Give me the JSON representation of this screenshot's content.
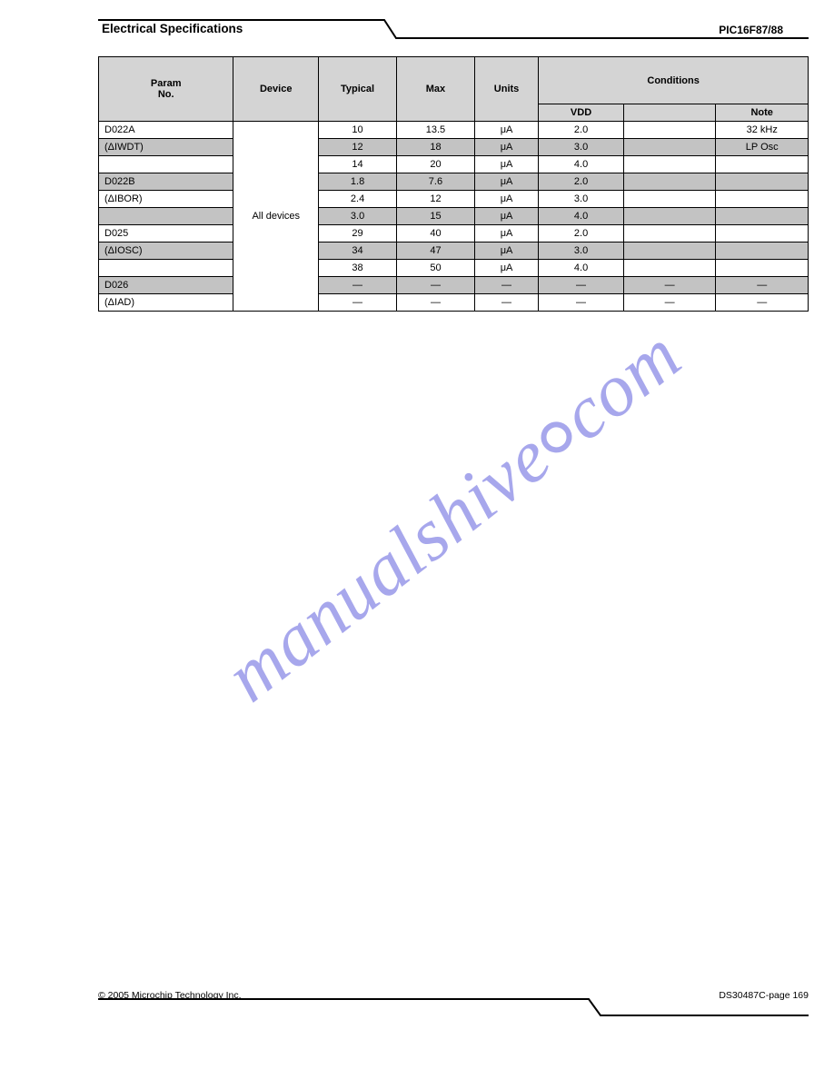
{
  "header": {
    "title": "Electrical Specifications",
    "tab": "PIC16F87/88"
  },
  "table": {
    "header_row1": [
      "Param\nNo.",
      "Device",
      "Typical",
      "Max",
      "Units",
      "",
      "",
      ""
    ],
    "header_conditions": "Conditions",
    "header_row2": [
      "",
      "",
      "",
      "",
      "",
      "VDD",
      "",
      "Note"
    ],
    "rows": [
      {
        "shaded": false,
        "cells": [
          "D022A",
          "",
          "10",
          "13.5",
          "μA",
          "2.0",
          "",
          "32 kHz"
        ]
      },
      {
        "shaded": true,
        "cells": [
          "(ΔIWDT)",
          "",
          "12",
          "18",
          "μA",
          "3.0",
          "",
          "LP Osc"
        ]
      },
      {
        "shaded": false,
        "cells": [
          "",
          "",
          "14",
          "20",
          "μA",
          "4.0",
          "",
          ""
        ]
      },
      {
        "shaded": true,
        "cells": [
          "D022B",
          "",
          "1.8",
          "7.6",
          "μA",
          "2.0",
          "",
          ""
        ]
      },
      {
        "shaded": false,
        "cells": [
          "(ΔIBOR)",
          "",
          "2.4",
          "12",
          "μA",
          "3.0",
          "",
          ""
        ]
      },
      {
        "shaded": true,
        "cells": [
          "",
          "",
          "3.0",
          "15",
          "μA",
          "4.0",
          "",
          ""
        ]
      },
      {
        "shaded": false,
        "cells": [
          "D025",
          "",
          "29",
          "40",
          "μA",
          "2.0",
          "",
          ""
        ]
      },
      {
        "shaded": true,
        "cells": [
          "(ΔIOSC)",
          "",
          "34",
          "47",
          "μA",
          "3.0",
          "",
          ""
        ]
      },
      {
        "shaded": false,
        "cells": [
          "",
          "",
          "38",
          "50",
          "μA",
          "4.0",
          "",
          ""
        ]
      },
      {
        "shaded": true,
        "cells": [
          "D026",
          "",
          "—",
          "—",
          "—",
          "—",
          "—",
          "—"
        ]
      },
      {
        "shaded": false,
        "cells": [
          "(ΔIAD)",
          "",
          "—",
          "—",
          "—",
          "—",
          "—",
          "—"
        ]
      }
    ],
    "merge_col2_label": "All devices",
    "col_widths_pct": [
      19,
      12,
      11,
      11,
      9,
      12,
      13,
      13
    ]
  },
  "footer": {
    "left": "© 2005 Microchip Technology Inc.",
    "right": "DS30487C-page 169"
  },
  "watermark": "manualshive.com",
  "colors": {
    "header_bg": "#d4d4d4",
    "shade_bg": "#c3c3c3",
    "border": "#000000",
    "wm": "rgba(108,108,224,0.6)"
  }
}
